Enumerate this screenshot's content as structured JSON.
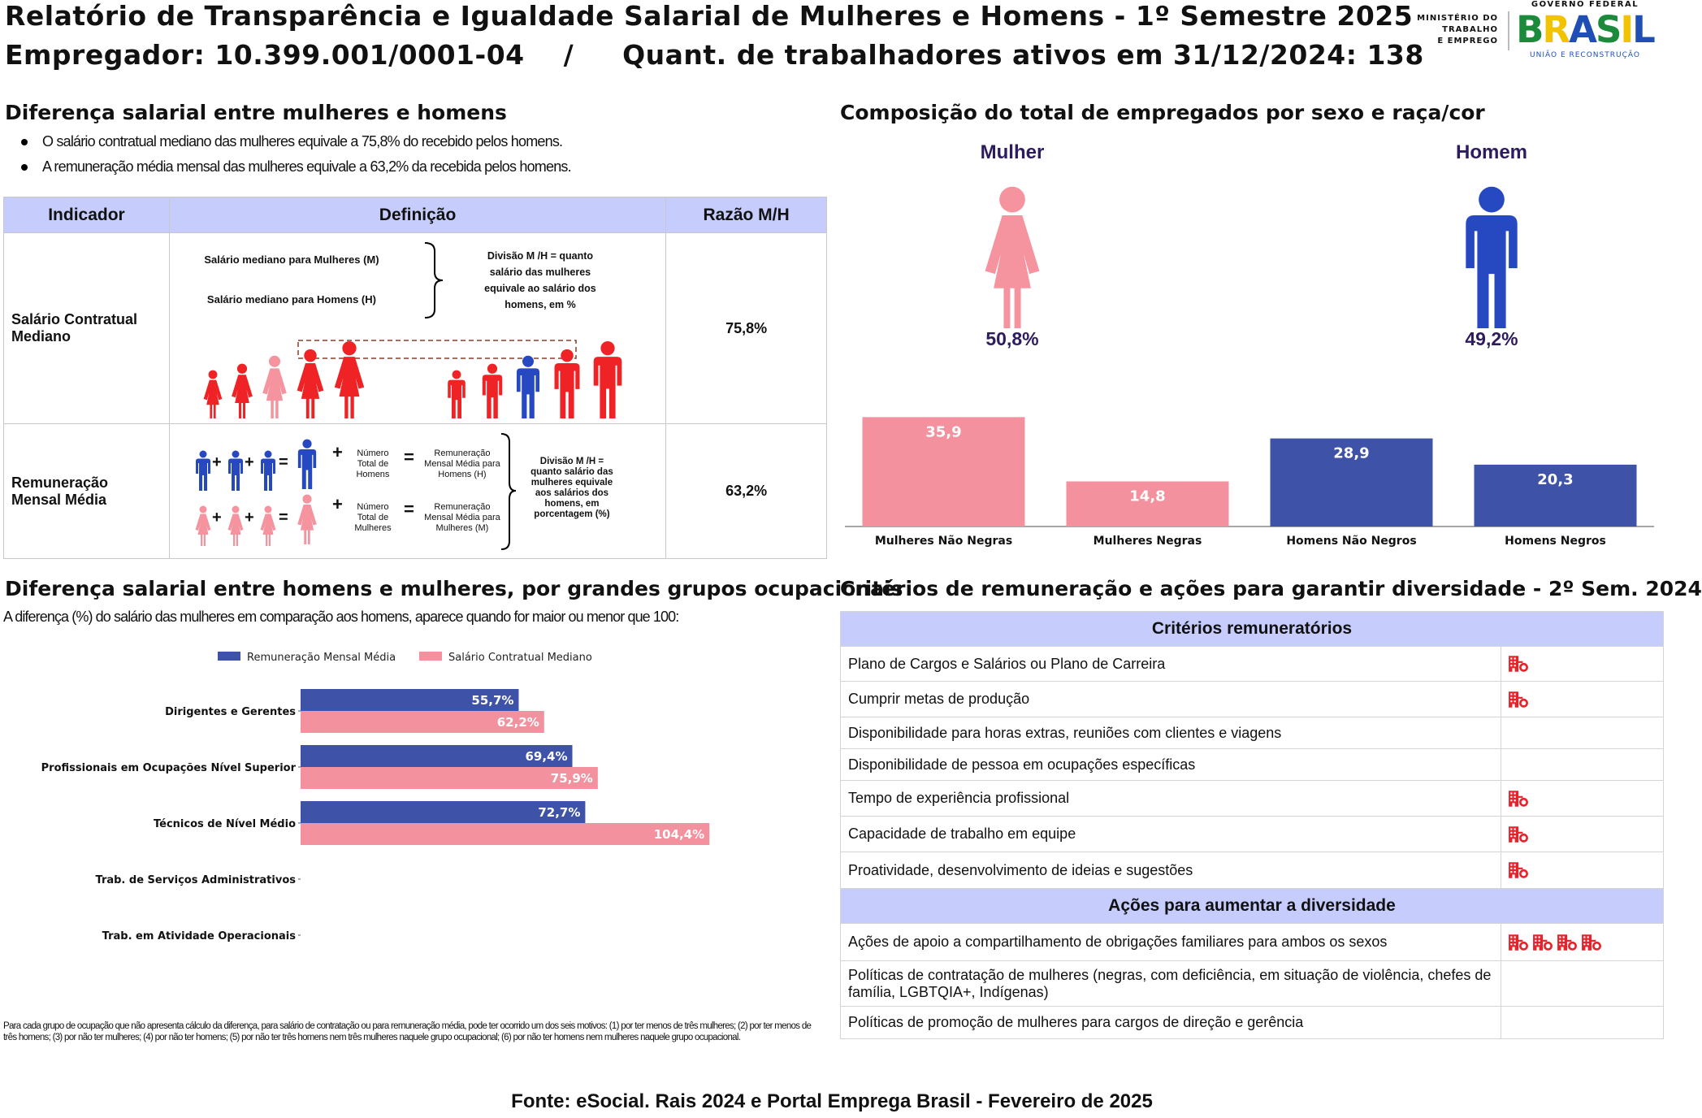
{
  "header": {
    "title": "Relatório de Transparência e Igualdade Salarial de Mulheres e Homens - 1º Semestre 2025",
    "employer_line": "Empregador: 10.399.001/0001-04    /     Quant. de trabalhadores ativos em 31/12/2024: 138",
    "ministry": [
      "MINISTÉRIO DO",
      "TRABALHO",
      "E EMPREGO"
    ],
    "gov_top": "GOVERNO FEDERAL",
    "gov_brand": "BRASIL",
    "gov_bottom": "UNIÃO E RECONSTRUÇÃO"
  },
  "salary_diff": {
    "title": "Diferença salarial entre mulheres e homens",
    "bullets": [
      "O salário contratual mediano das mulheres equivale a 75,8% do recebido pelos homens.",
      "A remuneração média mensal das mulheres equivale a 63,2% da recebida pelos homens."
    ],
    "table": {
      "headers": [
        "Indicador",
        "Definição",
        "Razão M/H"
      ],
      "row1": {
        "indicator": "Salário Contratual Mediano",
        "label_women": "Salário mediano para Mulheres (M)",
        "label_men": "Salário mediano para Homens (H)",
        "division": "Divisão M /H = quanto salário das mulheres equivale ao salário dos homens, em %",
        "ratio": "75,8%"
      },
      "row2": {
        "indicator": "Remuneração Mensal Média",
        "num_men": "Número Total de Homens",
        "num_women": "Número Total de Mulheres",
        "rem_men": "Remuneração Mensal Média para Homens (H)",
        "rem_women": "Remuneração Mensal Média para Mulheres (M)",
        "division": "Divisão M /H = quanto salário das mulheres equivale aos salários dos homens, em porcentagem (%)",
        "ratio": "63,2%",
        "plus": "+",
        "equals": "="
      }
    }
  },
  "composition": {
    "title": "Composição do total de empregados por sexo e raça/cor",
    "women_label": "Mulher",
    "men_label": "Homem",
    "women_pct": "50,8%",
    "men_pct": "49,2%",
    "colors": {
      "women": "#f4919e",
      "men": "#3e53a8",
      "women_icon": "#f5939f",
      "men_icon": "#2648c0",
      "label": "#2e1b5e"
    }
  },
  "chart_data": [
    {
      "type": "bar",
      "categories": [
        "Mulheres Não Negras",
        "Mulheres Negras",
        "Homens Não Negros",
        "Homens Negros"
      ],
      "values": [
        35.9,
        14.8,
        28.9,
        20.3
      ],
      "value_labels": [
        "35,9",
        "14,8",
        "28,9",
        "20,3"
      ],
      "colors": [
        "#f4919e",
        "#f4919e",
        "#3e53a8",
        "#3e53a8"
      ],
      "ylim": [
        0,
        40
      ],
      "grid": false
    },
    {
      "type": "bar",
      "orientation": "horizontal",
      "categories": [
        "Dirigentes e Gerentes",
        "Profissionais em Ocupações Nível Superior",
        "Técnicos de Nível Médio",
        "Trab. de Serviços Administrativos",
        "Trab. em Atividade Operacionais"
      ],
      "series": [
        {
          "name": "Remuneração Mensal Média",
          "color": "#3e53a8",
          "values": [
            55.7,
            69.4,
            72.7,
            null,
            null
          ],
          "labels": [
            "55,7%",
            "69,4%",
            "72,7%",
            "",
            ""
          ]
        },
        {
          "name": "Salário Contratual Mediano",
          "color": "#f4919e",
          "values": [
            62.2,
            75.9,
            104.4,
            null,
            null
          ],
          "labels": [
            "62,2%",
            "75,9%",
            "104,4%",
            "",
            ""
          ]
        }
      ],
      "legend": "top",
      "xlim": [
        0,
        130
      ],
      "grid": false
    }
  ],
  "occupational": {
    "title": "Diferença salarial entre homens e mulheres, por grandes grupos ocupacionais",
    "subtitle": "A diferença (%) do salário das mulheres em comparação aos homens, aparece quando for maior ou menor que 100:",
    "footnote": "Para cada grupo de ocupação que não apresenta cálculo da diferença, para salário de contratação ou para remuneração média, pode ter ocorrido um dos seis motivos: (1) por ter menos de três mulheres; (2) por ter menos de três homens; (3) por não ter mulheres; (4) por não ter homens; (5) por não ter três homens nem três mulheres naquele grupo ocupacional; (6) por não ter homens nem mulheres naquele grupo ocupacional."
  },
  "criteria": {
    "title": "Critérios de remuneração e ações para garantir diversidade - 2º Sem. 2024",
    "criteria_header": "Critérios remuneratórios",
    "criteria_rows": [
      {
        "label": "Plano de Cargos e Salários ou Plano de Carreira",
        "icons": 1
      },
      {
        "label": "Cumprir metas de produção",
        "icons": 1
      },
      {
        "label": "Disponibilidade para horas extras, reuniões com clientes e viagens",
        "icons": 0
      },
      {
        "label": "Disponibilidade de pessoa em ocupações específicas",
        "icons": 0
      },
      {
        "label": "Tempo de experiência profissional",
        "icons": 1
      },
      {
        "label": "Capacidade de trabalho em equipe",
        "icons": 1
      },
      {
        "label": "Proatividade, desenvolvimento de ideias e sugestões",
        "icons": 1
      }
    ],
    "actions_header": "Ações para aumentar a diversidade",
    "action_rows": [
      {
        "label": "Ações de apoio a compartilhamento de obrigações familiares para ambos os sexos",
        "icons": 4
      },
      {
        "label": "Políticas de contratação de mulheres (negras, com deficiência, em situação de violência, chefes de família, LGBTQIA+, Indígenas)",
        "icons": 0
      },
      {
        "label": "Políticas de promoção de mulheres para cargos de direção e gerência",
        "icons": 0
      }
    ],
    "icon_name": "building-icon",
    "icon_color": "#e8212a"
  },
  "footer": {
    "source": "Fonte: eSocial. Rais 2024 e Portal Emprega Brasil - Fevereiro de 2025"
  }
}
